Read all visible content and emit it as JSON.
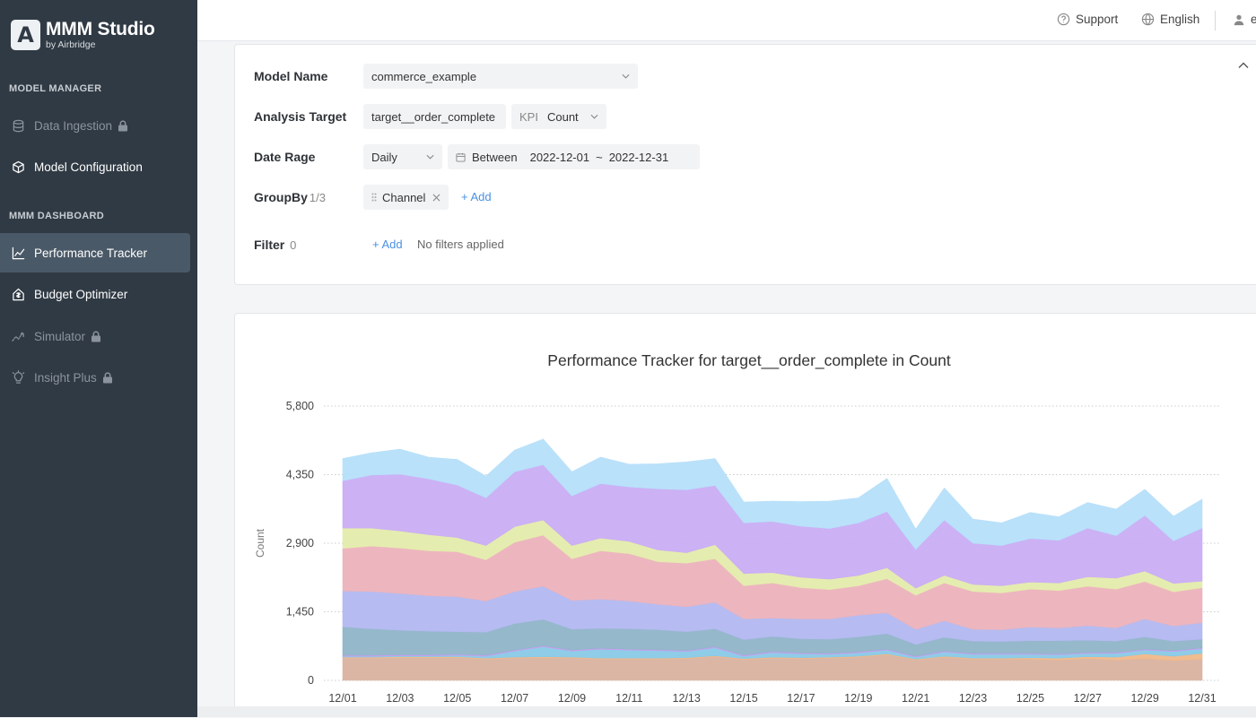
{
  "brand": {
    "mark": "A",
    "title": "MMM Studio",
    "subtitle": "by Airbridge"
  },
  "sidebar": {
    "sections": [
      {
        "label": "MODEL MANAGER"
      },
      {
        "label": "MMM DASHBOARD"
      }
    ],
    "items": [
      {
        "label": "Data Ingestion",
        "icon": "database-icon",
        "locked": true,
        "active": false
      },
      {
        "label": "Model Configuration",
        "icon": "cube-icon",
        "locked": false,
        "active": false
      },
      {
        "label": "Performance Tracker",
        "icon": "line-chart-icon",
        "locked": false,
        "active": true
      },
      {
        "label": "Budget Optimizer",
        "icon": "budget-icon",
        "locked": false,
        "active": false
      },
      {
        "label": "Simulator",
        "icon": "sparkline-icon",
        "locked": true,
        "active": false
      },
      {
        "label": "Insight Plus",
        "icon": "bulb-icon",
        "locked": true,
        "active": false
      }
    ]
  },
  "topbar": {
    "support": "Support",
    "language": "English",
    "user_initial": "e"
  },
  "filters": {
    "model_name_label": "Model Name",
    "model_name_value": "commerce_example",
    "analysis_target_label": "Analysis Target",
    "analysis_target_value": "target__order_complete",
    "kpi_prefix": "KPI",
    "kpi_value": "Count",
    "date_label": "Date Rage",
    "granularity": "Daily",
    "between_label": "Between",
    "date_start": "2022-12-01",
    "date_sep": "~",
    "date_end": "2022-12-31",
    "groupby_label": "GroupBy",
    "groupby_count": "1/3",
    "groupby_tag": "Channel",
    "add_label": "+ Add",
    "filter_label": "Filter",
    "filter_count": "0",
    "no_filters": "No filters applied"
  },
  "chart_data": {
    "type": "area",
    "stacked": true,
    "title": "Performance Tracker for target__order_complete in Count",
    "ylabel": "Count",
    "xlabel": "",
    "ylim": [
      0,
      5800
    ],
    "yticks": [
      0,
      1450,
      2900,
      4350,
      5800
    ],
    "ytick_labels": [
      "0",
      "1,450",
      "2,900",
      "4,350",
      "5,800"
    ],
    "grid": "horizontal-dotted",
    "legend": "none",
    "x": [
      "12/01",
      "12/02",
      "12/03",
      "12/04",
      "12/05",
      "12/06",
      "12/07",
      "12/08",
      "12/09",
      "12/10",
      "12/11",
      "12/12",
      "12/13",
      "12/14",
      "12/15",
      "12/16",
      "12/17",
      "12/18",
      "12/19",
      "12/20",
      "12/21",
      "12/22",
      "12/23",
      "12/24",
      "12/25",
      "12/26",
      "12/27",
      "12/28",
      "12/29",
      "12/30",
      "12/31"
    ],
    "xtick_labels": [
      "12/01",
      "12/03",
      "12/05",
      "12/07",
      "12/09",
      "12/11",
      "12/13",
      "12/15",
      "12/17",
      "12/19",
      "12/21",
      "12/23",
      "12/25",
      "12/27",
      "12/29",
      "12/31"
    ],
    "series": [
      {
        "color": "#d9b2a0",
        "values": [
          470,
          470,
          480,
          480,
          480,
          450,
          470,
          480,
          470,
          450,
          450,
          450,
          460,
          500,
          440,
          470,
          460,
          470,
          490,
          540,
          430,
          490,
          450,
          450,
          450,
          430,
          460,
          430,
          460,
          420,
          450
        ]
      },
      {
        "color": "#f0b889",
        "values": [
          20,
          20,
          20,
          20,
          20,
          20,
          20,
          20,
          20,
          20,
          20,
          20,
          20,
          20,
          20,
          20,
          20,
          20,
          20,
          20,
          20,
          20,
          20,
          20,
          30,
          40,
          40,
          60,
          100,
          90,
          120
        ]
      },
      {
        "color": "#89c9e6",
        "values": [
          20,
          20,
          20,
          20,
          30,
          40,
          130,
          210,
          130,
          190,
          170,
          160,
          130,
          170,
          50,
          100,
          80,
          60,
          70,
          80,
          40,
          90,
          80,
          80,
          70,
          70,
          70,
          80,
          80,
          100,
          100
        ]
      },
      {
        "color": "#c69ef0",
        "values": [
          20,
          20,
          20,
          20,
          20,
          20,
          20,
          20,
          20,
          20,
          20,
          20,
          20,
          20,
          20,
          20,
          20,
          20,
          20,
          20,
          20,
          20,
          20,
          20,
          20,
          20,
          20,
          20,
          20,
          20,
          20
        ]
      },
      {
        "color": "#8fb4c8",
        "values": [
          600,
          560,
          520,
          500,
          480,
          490,
          560,
          560,
          440,
          420,
          430,
          420,
          400,
          380,
          330,
          320,
          300,
          300,
          320,
          330,
          250,
          290,
          260,
          250,
          270,
          280,
          260,
          240,
          260,
          200,
          180
        ]
      },
      {
        "color": "#b2b8f0",
        "values": [
          760,
          790,
          780,
          750,
          740,
          660,
          680,
          700,
          610,
          620,
          590,
          540,
          530,
          560,
          440,
          390,
          420,
          430,
          460,
          440,
          320,
          350,
          250,
          250,
          290,
          270,
          310,
          280,
          380,
          320,
          350
        ]
      },
      {
        "color": "#ecb2bc",
        "values": [
          900,
          960,
          960,
          950,
          950,
          870,
          1040,
          1080,
          880,
          1020,
          1000,
          900,
          920,
          920,
          700,
          740,
          660,
          620,
          620,
          720,
          720,
          800,
          800,
          780,
          800,
          790,
          830,
          820,
          790,
          720,
          740
        ]
      },
      {
        "color": "#e4ebac",
        "values": [
          430,
          380,
          360,
          340,
          300,
          300,
          330,
          320,
          280,
          270,
          260,
          250,
          220,
          300,
          260,
          220,
          220,
          220,
          220,
          230,
          150,
          160,
          150,
          150,
          150,
          160,
          200,
          230,
          220,
          180,
          140
        ]
      },
      {
        "color": "#c9adf4",
        "values": [
          1000,
          1120,
          1200,
          1180,
          1110,
          1010,
          1160,
          1170,
          1050,
          1150,
          1150,
          1290,
          1330,
          1250,
          1070,
          1080,
          1080,
          1070,
          1110,
          1190,
          820,
          1170,
          870,
          850,
          920,
          900,
          1030,
          900,
          1180,
          900,
          1120
        ]
      },
      {
        "color": "#b6dffa",
        "values": [
          470,
          470,
          530,
          460,
          540,
          460,
          460,
          540,
          510,
          560,
          480,
          530,
          590,
          570,
          440,
          430,
          520,
          580,
          530,
          700,
          430,
          680,
          510,
          480,
          550,
          500,
          540,
          560,
          550,
          520,
          610
        ]
      }
    ]
  }
}
